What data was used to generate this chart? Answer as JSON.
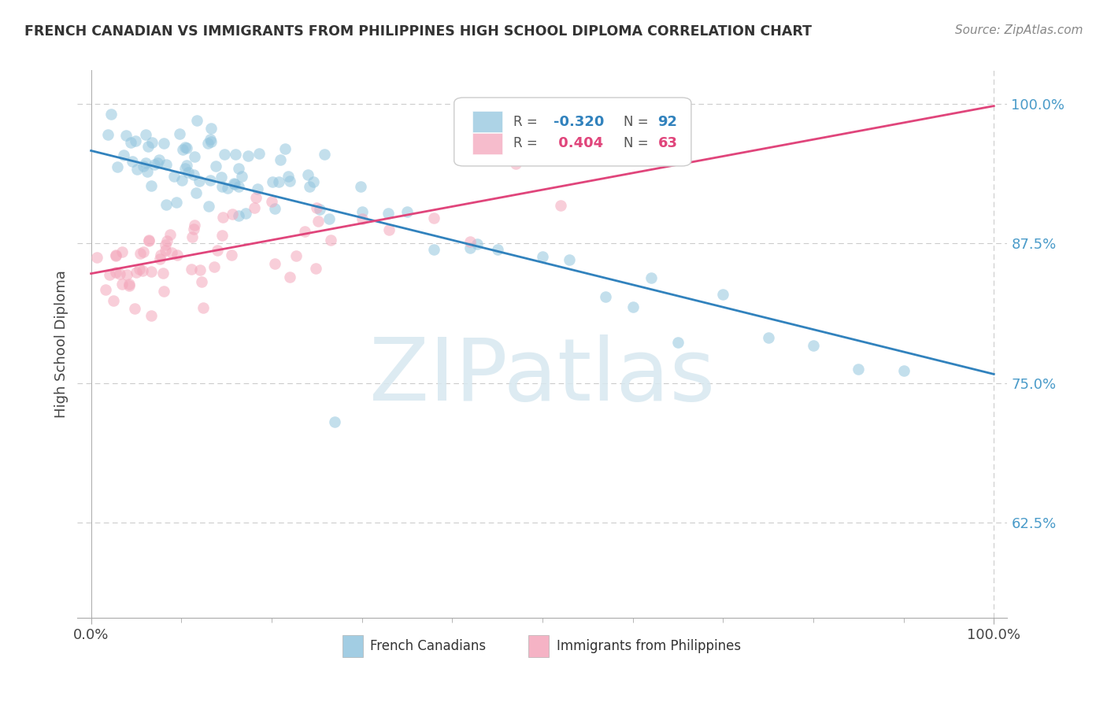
{
  "title": "FRENCH CANADIAN VS IMMIGRANTS FROM PHILIPPINES HIGH SCHOOL DIPLOMA CORRELATION CHART",
  "source": "Source: ZipAtlas.com",
  "ylabel": "High School Diploma",
  "blue_color": "#92c5de",
  "pink_color": "#f4a6bb",
  "blue_line_color": "#3182bd",
  "pink_line_color": "#e0457b",
  "blue_r": "-0.320",
  "blue_n": "92",
  "pink_r": "0.404",
  "pink_n": "63",
  "ylim": [
    0.54,
    1.03
  ],
  "xlim": [
    -0.015,
    1.015
  ],
  "yticks": [
    0.625,
    0.75,
    0.875,
    1.0
  ],
  "ytick_labels": [
    "62.5%",
    "75.0%",
    "87.5%",
    "100.0%"
  ],
  "xtick_labels": [
    "0.0%",
    "100.0%"
  ],
  "background_color": "#ffffff",
  "grid_color": "#cccccc",
  "legend_label_blue": "French Canadians",
  "legend_label_pink": "Immigrants from Philippines"
}
